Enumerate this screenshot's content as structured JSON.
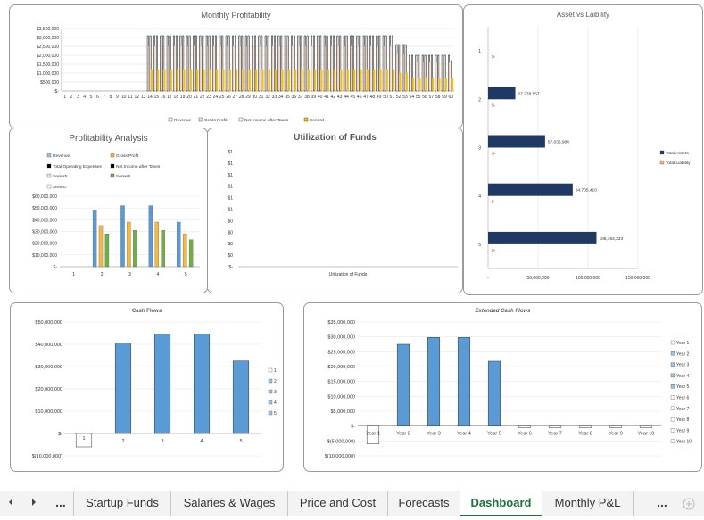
{
  "colors": {
    "blue": "#5b9bd5",
    "orange": "#ed7d31",
    "green": "#70ad47",
    "navy": "#1f3864",
    "black": "#000000",
    "gold": "#ffc000",
    "darkorange": "#f4b183"
  },
  "tabs": {
    "prev_icon": "chevron-left-icon",
    "next_icon": "chevron-right-icon",
    "more_left": "...",
    "more_right": "...",
    "add_icon": "plus-circle-icon",
    "items": [
      {
        "label": "Startup Funds"
      },
      {
        "label": "Salaries & Wages"
      },
      {
        "label": "Price and Cost"
      },
      {
        "label": "Forecasts"
      },
      {
        "label": "Dashboard"
      },
      {
        "label": "Monthly P&L"
      }
    ],
    "active": "Dashboard"
  },
  "chart_data": [
    {
      "id": "monthly",
      "type": "bar",
      "title": "Monthly Profitability",
      "x": [
        1,
        2,
        3,
        4,
        5,
        6,
        7,
        8,
        9,
        10,
        11,
        12,
        13,
        14,
        15,
        16,
        17,
        18,
        19,
        20,
        21,
        22,
        23,
        24,
        25,
        26,
        27,
        28,
        29,
        30,
        31,
        32,
        33,
        34,
        35,
        36,
        37,
        38,
        39,
        40,
        41,
        42,
        43,
        44,
        45,
        46,
        47,
        48,
        49,
        50,
        51,
        52,
        53,
        54,
        55,
        56,
        57,
        58,
        59,
        60
      ],
      "yticks": [
        "$-",
        "$500,000",
        "$1,000,000",
        "$1,500,000",
        "$2,000,000",
        "$2,500,000",
        "$3,000,000",
        "$3,500,000"
      ],
      "ylim": [
        0,
        3500000
      ],
      "series": [
        {
          "name": "Revenue",
          "values": [
            0,
            0,
            0,
            0,
            0,
            0,
            0,
            0,
            0,
            0,
            0,
            0,
            0,
            3100000,
            3100000,
            3100000,
            3100000,
            3100000,
            3100000,
            3100000,
            3100000,
            3100000,
            3100000,
            3100000,
            3100000,
            3100000,
            3100000,
            3100000,
            3100000,
            3100000,
            3100000,
            3100000,
            3100000,
            3100000,
            3100000,
            3100000,
            3100000,
            3100000,
            3100000,
            3100000,
            3100000,
            3100000,
            3100000,
            3100000,
            3100000,
            3100000,
            3100000,
            3100000,
            3100000,
            3100000,
            3100000,
            2600000,
            2600000,
            2000000,
            2000000,
            2000000,
            2000000,
            2000000,
            2000000,
            2000000
          ]
        },
        {
          "name": "Gross Profit",
          "values": [
            0,
            0,
            0,
            0,
            0,
            0,
            0,
            0,
            0,
            0,
            0,
            0,
            0,
            2500000,
            2500000,
            2500000,
            2500000,
            2500000,
            2500000,
            2500000,
            2500000,
            2500000,
            2500000,
            2500000,
            2500000,
            2500000,
            2500000,
            2500000,
            2500000,
            2500000,
            2500000,
            2500000,
            2500000,
            2500000,
            2500000,
            2500000,
            2500000,
            2500000,
            2500000,
            2500000,
            2500000,
            2500000,
            2500000,
            2500000,
            2500000,
            2500000,
            2500000,
            2500000,
            2500000,
            2500000,
            2500000,
            2100000,
            2100000,
            1600000,
            1600000,
            1600000,
            1600000,
            1600000,
            1600000,
            1600000
          ]
        },
        {
          "name": "Net Income after Taxes",
          "values": [
            0,
            0,
            0,
            0,
            0,
            0,
            0,
            0,
            0,
            0,
            0,
            0,
            0,
            3100000,
            3100000,
            3100000,
            3100000,
            3100000,
            3100000,
            3100000,
            3100000,
            3100000,
            3100000,
            3100000,
            3100000,
            3100000,
            3100000,
            3100000,
            3100000,
            3100000,
            3100000,
            3100000,
            3100000,
            3100000,
            3100000,
            3100000,
            3100000,
            3100000,
            3100000,
            3100000,
            3100000,
            3100000,
            3100000,
            3100000,
            3100000,
            3100000,
            3100000,
            3100000,
            3100000,
            3100000,
            3100000,
            2600000,
            2600000,
            2000000,
            2000000,
            2000000,
            2000000,
            2000000,
            2000000,
            1700000
          ]
        },
        {
          "name": "Series4",
          "values": [
            0,
            0,
            0,
            0,
            0,
            0,
            0,
            0,
            0,
            0,
            0,
            0,
            0,
            1200000,
            1200000,
            1200000,
            1200000,
            1200000,
            1200000,
            1200000,
            1200000,
            1200000,
            1200000,
            1200000,
            1200000,
            1200000,
            1200000,
            1200000,
            1200000,
            1200000,
            1200000,
            1200000,
            1200000,
            1200000,
            1200000,
            1200000,
            1200000,
            1200000,
            1200000,
            1200000,
            1200000,
            1200000,
            1200000,
            1200000,
            1200000,
            1200000,
            1200000,
            1200000,
            1200000,
            1200000,
            1200000,
            1000000,
            1000000,
            700000,
            700000,
            700000,
            700000,
            700000,
            700000,
            700000
          ]
        }
      ],
      "legend_position": "bottom"
    },
    {
      "id": "asset",
      "type": "bar",
      "orientation": "horizontal",
      "title": "Asset vs Laibility",
      "categories": [
        "1",
        "2",
        "3",
        "4",
        "5"
      ],
      "series": [
        {
          "name": "Total Assets",
          "values": [
            0,
            27278557,
            57036984,
            84705410,
            108464333
          ],
          "labels": [
            "-",
            "27,278,557",
            "57,036,984",
            "84,705,410",
            "108,464,333"
          ]
        },
        {
          "name": "Total Liability",
          "values": [
            0,
            0,
            0,
            0,
            0
          ],
          "labels": [
            "$-",
            "$-",
            "$-",
            "$-",
            "$-"
          ]
        }
      ],
      "xticks": [
        "-",
        "50,000,000",
        "100,000,000",
        "150,000,000"
      ],
      "xlim": [
        0,
        150000000
      ],
      "legend_position": "right"
    },
    {
      "id": "profit",
      "type": "bar",
      "title": "Profitability Analysis",
      "categories": [
        "1",
        "2",
        "3",
        "4",
        "5"
      ],
      "series": [
        {
          "name": "Revenue",
          "values": [
            0,
            48000000,
            52000000,
            52000000,
            38000000
          ]
        },
        {
          "name": "Gross Profit",
          "values": [
            0,
            35000000,
            38000000,
            38000000,
            28000000
          ]
        },
        {
          "name": "Total Operating Expenses",
          "values": [
            0,
            0,
            0,
            0,
            0
          ]
        },
        {
          "name": "Net Income after Taxes",
          "values": [
            0,
            0,
            0,
            0,
            0
          ]
        },
        {
          "name": "Series5",
          "values": [
            0,
            0,
            0,
            0,
            0
          ]
        },
        {
          "name": "Series6",
          "values": [
            0,
            28000000,
            31000000,
            31000000,
            23000000
          ]
        },
        {
          "name": "Series7",
          "values": [
            0,
            0,
            0,
            0,
            0
          ]
        }
      ],
      "yticks": [
        "$-",
        "$10,000,000",
        "$20,000,000",
        "$30,000,000",
        "$40,000,000",
        "$50,000,000",
        "$60,000,000"
      ],
      "ylim": [
        0,
        60000000
      ],
      "legend_position": "top"
    },
    {
      "id": "util",
      "type": "bar",
      "title": "Utilization of Funds",
      "xlabel": "Utilization of Funds",
      "yticks": [
        "$-",
        "$0",
        "$0",
        "$0",
        "$0",
        "$1",
        "$1",
        "$1",
        "$1",
        "$1",
        "$1"
      ],
      "values": []
    },
    {
      "id": "cash",
      "type": "bar",
      "title": "Cash Flows",
      "categories": [
        "1",
        "2",
        "3",
        "4",
        "5"
      ],
      "values": [
        -6000000,
        40500000,
        44500000,
        44500000,
        32500000
      ],
      "yticks": [
        "$(10,000,000)",
        "$-",
        "$10,000,000",
        "$20,000,000",
        "$30,000,000",
        "$40,000,000",
        "$50,000,000"
      ],
      "ylim": [
        -10000000,
        50000000
      ],
      "legend": [
        "1",
        "2",
        "3",
        "4",
        "5"
      ],
      "legend_position": "right"
    },
    {
      "id": "ext",
      "type": "bar",
      "title": "Extended Cash Flows",
      "categories": [
        "Year 1",
        "Year 2",
        "Year 3",
        "Year 4",
        "Year 5",
        "Year 6",
        "Year 7",
        "Year 8",
        "Year 9",
        "Year 10"
      ],
      "values": [
        -6000000,
        27500000,
        29800000,
        29800000,
        21800000,
        -500000,
        -500000,
        -500000,
        -500000,
        -500000
      ],
      "yticks": [
        "$(10,000,000)",
        "$(5,000,000)",
        "$-",
        "$5,000,000",
        "$10,000,000",
        "$15,000,000",
        "$20,000,000",
        "$25,000,000",
        "$30,000,000",
        "$35,000,000"
      ],
      "ylim": [
        -10000000,
        35000000
      ],
      "legend": [
        "Year 1",
        "Year 2",
        "Year 3",
        "Year 4",
        "Year 5",
        "Year 6",
        "Year 7",
        "Year 8",
        "Year 9",
        "Year 10"
      ],
      "legend_position": "right"
    }
  ]
}
